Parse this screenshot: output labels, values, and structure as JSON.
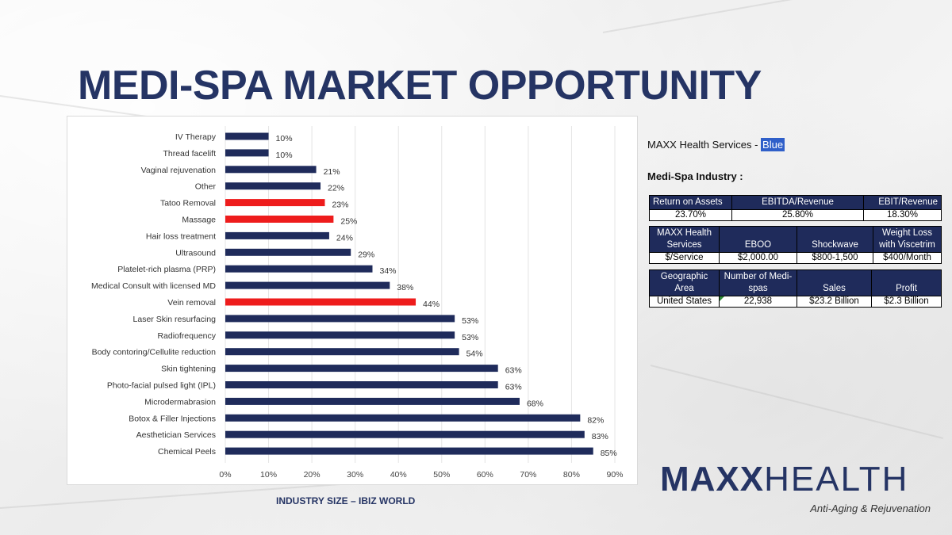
{
  "slide": {
    "title": "MEDI-SPA MARKET OPPORTUNITY",
    "caption": "INDUSTRY SIZE – IBIZ WORLD"
  },
  "colors": {
    "title": "#253464",
    "bar_default": "#1f2b5b",
    "bar_highlight": "#ee1c1c",
    "table_header": "#1f2b5b"
  },
  "chart_data": {
    "type": "bar",
    "orientation": "horizontal",
    "categories": [
      "IV Therapy",
      "Thread facelift",
      "Vaginal rejuvenation",
      "Other",
      "Tatoo Removal",
      "Massage",
      "Hair loss treatment",
      "Ultrasound",
      "Platelet-rich plasma (PRP)",
      "Medical Consult with licensed MD",
      "Vein removal",
      "Laser Skin resurfacing",
      "Radiofrequency",
      "Body contoring/Cellulite reduction",
      "Skin tightening",
      "Photo-facial pulsed light (IPL)",
      "Microdermabrasion",
      "Botox & Filler Injections",
      "Aesthetician Services",
      "Chemical Peels"
    ],
    "values": [
      10,
      10,
      21,
      22,
      23,
      25,
      24,
      29,
      34,
      38,
      44,
      53,
      53,
      54,
      63,
      63,
      68,
      82,
      83,
      85
    ],
    "value_labels": [
      "10%",
      "10%",
      "21%",
      "22%",
      "23%",
      "25%",
      "24%",
      "29%",
      "34%",
      "38%",
      "44%",
      "53%",
      "53%",
      "54%",
      "63%",
      "63%",
      "68%",
      "82%",
      "83%",
      "85%"
    ],
    "highlighted": [
      "Tatoo Removal",
      "Massage",
      "Vein removal"
    ],
    "xlim": [
      0,
      90
    ],
    "xticks": [
      "0%",
      "10%",
      "20%",
      "30%",
      "40%",
      "50%",
      "60%",
      "70%",
      "80%",
      "90%"
    ],
    "grid": true,
    "title": "",
    "xlabel": "",
    "ylabel": ""
  },
  "info": {
    "maxx_prefix": "MAXX Health Services - ",
    "maxx_highlight": "Blue",
    "industry_heading": "Medi-Spa Industry :"
  },
  "tables": {
    "returns": {
      "headers": [
        "Return on Assets",
        "EBITDA/Revenue",
        "EBIT/Revenue"
      ],
      "row": [
        "23.70%",
        "25.80%",
        "18.30%"
      ]
    },
    "services": {
      "headers": [
        "MAXX Health Services",
        "EBOO",
        "Shockwave",
        "Weight Loss with Viscetrim"
      ],
      "row": [
        "$/Service",
        "$2,000.00",
        "$800-1,500",
        "$400/Month"
      ]
    },
    "market": {
      "headers": [
        "Geographic Area",
        "Number of Medi-spas",
        "Sales",
        "Profit"
      ],
      "row": [
        "United States",
        "22,938",
        "$23.2 Billion",
        "$2.3 Billion"
      ]
    }
  },
  "logo": {
    "maxx": "MAXX",
    "health": "HEALTH",
    "tagline": "Anti-Aging & Rejuvenation"
  }
}
